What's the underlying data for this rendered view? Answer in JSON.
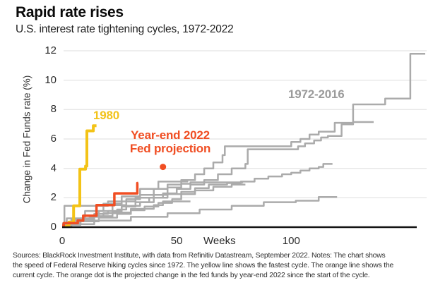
{
  "header": {
    "title": "Rapid rate rises",
    "subtitle": "U.S. interest rate tightening cycles, 1972-2022"
  },
  "chart_data": {
    "type": "line",
    "title": "Rapid rate rises",
    "subtitle": "U.S. interest rate tightening cycles, 1972-2022",
    "xlabel": "Weeks",
    "ylabel": "Change in Fed Funds rate (%)",
    "xlim": [
      0,
      159
    ],
    "ylim": [
      0,
      12
    ],
    "x_ticks": [
      0,
      50,
      100
    ],
    "y_ticks": [
      0,
      2,
      4,
      6,
      8,
      10,
      12
    ],
    "grid": "horizontal gridlines at y ticks",
    "legend_position": "inline annotations on chart",
    "colors": {
      "yellow": "#F3C317",
      "orange": "#F04E23",
      "gray": "#ABABAB",
      "grid": "#DDDDDD",
      "axis": "#141414"
    },
    "annotations": [
      {
        "id": "label-1980",
        "text": "1980",
        "color": "#F2C31C"
      },
      {
        "id": "label-2022-projection",
        "line1": "Year-end 2022",
        "line2": "Fed projection",
        "color": "#F04E23"
      },
      {
        "id": "label-1972-2016",
        "text": "1972-2016",
        "color": "#9B9B9B"
      }
    ],
    "projection_dot": {
      "week": 44,
      "value": 4.1,
      "meaning": "Year-end 2022 Fed projection"
    },
    "series": [
      {
        "name": "1972-2016 historical cycle 1 (longest, ends ~11.8)",
        "color": "#ABABAB",
        "width": 2.5,
        "points": [
          [
            0,
            0
          ],
          [
            4,
            0.5
          ],
          [
            10,
            0.8
          ],
          [
            16,
            1.1
          ],
          [
            22,
            1.5
          ],
          [
            28,
            1.9
          ],
          [
            34,
            2.2
          ],
          [
            40,
            2.6
          ],
          [
            46,
            2.9
          ],
          [
            52,
            3.2
          ],
          [
            58,
            3.6
          ],
          [
            62,
            4.0
          ],
          [
            66,
            4.4
          ],
          [
            70,
            4.9
          ],
          [
            71,
            5.5
          ],
          [
            96,
            5.5
          ],
          [
            100,
            5.8
          ],
          [
            104,
            6.0
          ],
          [
            108,
            6.3
          ],
          [
            112,
            6.5
          ],
          [
            118,
            6.5
          ],
          [
            119,
            7.1
          ],
          [
            126,
            7.1
          ],
          [
            127,
            8.35
          ],
          [
            140,
            8.35
          ],
          [
            141,
            8.75
          ],
          [
            151,
            8.75
          ],
          [
            152,
            11.8
          ],
          [
            158.5,
            11.8
          ]
        ]
      },
      {
        "name": "1972-2016 historical cycle 2 (ends ~7.15)",
        "color": "#ABABAB",
        "width": 2.5,
        "points": [
          [
            0,
            0
          ],
          [
            3,
            0.3
          ],
          [
            8,
            0.6
          ],
          [
            14,
            0.9
          ],
          [
            20,
            1.1
          ],
          [
            26,
            1.4
          ],
          [
            32,
            1.7
          ],
          [
            38,
            2.0
          ],
          [
            44,
            2.3
          ],
          [
            50,
            2.6
          ],
          [
            56,
            2.9
          ],
          [
            62,
            3.2
          ],
          [
            68,
            3.6
          ],
          [
            74,
            4.0
          ],
          [
            80,
            4.3
          ],
          [
            81,
            5.3
          ],
          [
            100,
            5.3
          ],
          [
            103,
            5.5
          ],
          [
            106,
            5.7
          ],
          [
            110,
            5.9
          ],
          [
            113,
            6.1
          ],
          [
            116,
            6.2
          ],
          [
            121,
            6.2
          ],
          [
            122,
            7.0
          ],
          [
            126,
            7.0
          ],
          [
            127,
            7.15
          ],
          [
            136,
            7.15
          ]
        ]
      },
      {
        "name": "1972-2016 historical cycle 3 (ends ~4.3)",
        "color": "#ABABAB",
        "width": 2.5,
        "points": [
          [
            0,
            0.15
          ],
          [
            8,
            0.4
          ],
          [
            16,
            0.65
          ],
          [
            24,
            0.9
          ],
          [
            30,
            1.15
          ],
          [
            36,
            1.4
          ],
          [
            42,
            1.65
          ],
          [
            48,
            1.9
          ],
          [
            52,
            2.4
          ],
          [
            58,
            2.65
          ],
          [
            64,
            2.9
          ],
          [
            72,
            3.0
          ],
          [
            78,
            3.1
          ],
          [
            84,
            3.3
          ],
          [
            90,
            3.45
          ],
          [
            96,
            3.6
          ],
          [
            100,
            3.7
          ],
          [
            104,
            3.85
          ],
          [
            108,
            4.0
          ],
          [
            112,
            4.1
          ],
          [
            114,
            4.3
          ],
          [
            118,
            4.3
          ]
        ]
      },
      {
        "name": "1972-2016 historical cycle 4 (slow, ends ~2.05)",
        "color": "#ABABAB",
        "width": 2.5,
        "points": [
          [
            0,
            0.2
          ],
          [
            12,
            0.2
          ],
          [
            14,
            0.45
          ],
          [
            28,
            0.45
          ],
          [
            30,
            0.7
          ],
          [
            44,
            0.7
          ],
          [
            46,
            0.95
          ],
          [
            58,
            0.95
          ],
          [
            60,
            1.2
          ],
          [
            72,
            1.2
          ],
          [
            74,
            1.45
          ],
          [
            86,
            1.45
          ],
          [
            88,
            1.7
          ],
          [
            100,
            1.7
          ],
          [
            102,
            1.8
          ],
          [
            110,
            1.8
          ],
          [
            112,
            2.05
          ],
          [
            120,
            2.05
          ]
        ]
      },
      {
        "name": "1972-2016 historical cycle 5 (ends ~3.05)",
        "color": "#ABABAB",
        "width": 2.5,
        "points": [
          [
            0,
            0.2
          ],
          [
            6,
            0.45
          ],
          [
            12,
            0.7
          ],
          [
            18,
            0.95
          ],
          [
            24,
            1.2
          ],
          [
            28,
            1.45
          ],
          [
            34,
            1.7
          ],
          [
            40,
            2.2
          ],
          [
            46,
            2.7
          ],
          [
            52,
            2.95
          ],
          [
            56,
            3.05
          ],
          [
            79,
            3.05
          ]
        ]
      },
      {
        "name": "1972-2016 historical cycle 6 (ends ~3.1)",
        "color": "#ABABAB",
        "width": 2.5,
        "points": [
          [
            0,
            0.1
          ],
          [
            2,
            0.6
          ],
          [
            8,
            0.6
          ],
          [
            10,
            1.1
          ],
          [
            16,
            1.1
          ],
          [
            18,
            1.6
          ],
          [
            24,
            1.6
          ],
          [
            26,
            2.1
          ],
          [
            32,
            2.1
          ],
          [
            34,
            2.6
          ],
          [
            40,
            2.6
          ],
          [
            42,
            3.1
          ],
          [
            55,
            3.1
          ]
        ]
      },
      {
        "name": "1972-2016 historical cycle 7 (ends ~1.75)",
        "color": "#ABABAB",
        "width": 2.5,
        "points": [
          [
            0,
            0.25
          ],
          [
            8,
            0.5
          ],
          [
            14,
            0.75
          ],
          [
            22,
            1.0
          ],
          [
            30,
            1.25
          ],
          [
            40,
            1.5
          ],
          [
            44,
            1.75
          ],
          [
            56,
            1.75
          ]
        ]
      },
      {
        "name": "1972-2016 historical cycle 8 (early jump)",
        "color": "#ABABAB",
        "width": 2.5,
        "points": [
          [
            0,
            0.1
          ],
          [
            1,
            1.45
          ],
          [
            18,
            1.45
          ],
          [
            20,
            1.75
          ],
          [
            30,
            1.75
          ],
          [
            32,
            2.0
          ],
          [
            44,
            2.0
          ],
          [
            46,
            2.25
          ],
          [
            56,
            2.25
          ],
          [
            58,
            2.5
          ],
          [
            64,
            2.5
          ],
          [
            66,
            2.75
          ],
          [
            72,
            2.75
          ],
          [
            74,
            2.9
          ],
          [
            80,
            2.9
          ]
        ]
      },
      {
        "name": "1980 (fastest cycle)",
        "color": "#F3C317",
        "width": 4,
        "points": [
          [
            0,
            0.05
          ],
          [
            2.5,
            0.1
          ],
          [
            3,
            0.35
          ],
          [
            4.5,
            0.35
          ],
          [
            5,
            1.45
          ],
          [
            7.3,
            1.45
          ],
          [
            7.7,
            3.95
          ],
          [
            9.8,
            3.95
          ],
          [
            10.2,
            4.15
          ],
          [
            10.4,
            4.15
          ],
          [
            10.8,
            6.55
          ],
          [
            13.2,
            6.55
          ],
          [
            13.6,
            6.9
          ],
          [
            15,
            6.9
          ]
        ]
      },
      {
        "name": "2022 (current cycle)",
        "color": "#F04E23",
        "width": 3.5,
        "points": [
          [
            0,
            0.1
          ],
          [
            0.7,
            0.28
          ],
          [
            6.2,
            0.28
          ],
          [
            6.8,
            0.45
          ],
          [
            8.6,
            0.45
          ],
          [
            9.2,
            0.78
          ],
          [
            14.3,
            0.78
          ],
          [
            15,
            1.5
          ],
          [
            22,
            1.5
          ],
          [
            22.8,
            2.3
          ],
          [
            32,
            2.3
          ],
          [
            32.8,
            3.0
          ],
          [
            33.2,
            3.0
          ]
        ]
      }
    ]
  },
  "footnote": {
    "lines": [
      "Sources: BlackRock Investment Institute, with data from Refinitiv Datastream, September 2022. Notes: The chart shows",
      "the speed of Federal Reserve hiking cycles since 1972. The yellow line shows the fastest cycle. The orange line shows the",
      "current cycle. The orange dot is the projected change in the fed funds by year-end 2022 since the start of the cycle."
    ]
  }
}
